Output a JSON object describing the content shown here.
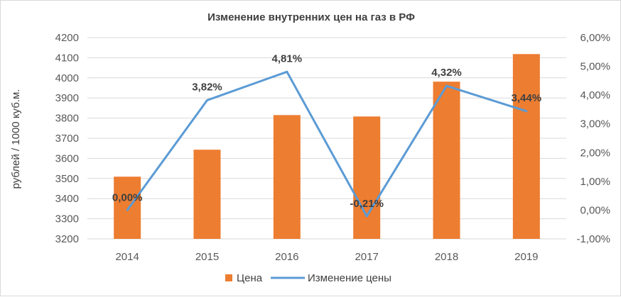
{
  "chart_data": {
    "type": "bar",
    "title": "Изменение внутренних цен на газ в РФ",
    "categories": [
      "2014",
      "2015",
      "2016",
      "2017",
      "2018",
      "2019"
    ],
    "ylabel": "рублей / 1000 куб.м.",
    "ylim": [
      3200,
      4200
    ],
    "yticks": [
      "3200",
      "3300",
      "3400",
      "3500",
      "3600",
      "3700",
      "3800",
      "3900",
      "4000",
      "4100",
      "4200"
    ],
    "y2lim": [
      -1,
      6
    ],
    "y2ticks": [
      "-1,00%",
      "0,00%",
      "1,00%",
      "2,00%",
      "3,00%",
      "4,00%",
      "5,00%",
      "6,00%"
    ],
    "grid": true,
    "legend_position": "bottom",
    "series": [
      {
        "name": "Цена",
        "type": "bar",
        "axis": "left",
        "color": "#ed7d31",
        "values": [
          3509,
          3643,
          3815,
          3808,
          3981,
          4118
        ]
      },
      {
        "name": "Изменение цены",
        "type": "line",
        "axis": "right",
        "color": "#5b9bd5",
        "values": [
          0.0,
          3.82,
          4.81,
          -0.21,
          4.32,
          3.44
        ],
        "labels": [
          "0,00%",
          "3,82%",
          "4,81%",
          "-0,21%",
          "4,32%",
          "3,44%"
        ]
      }
    ]
  }
}
